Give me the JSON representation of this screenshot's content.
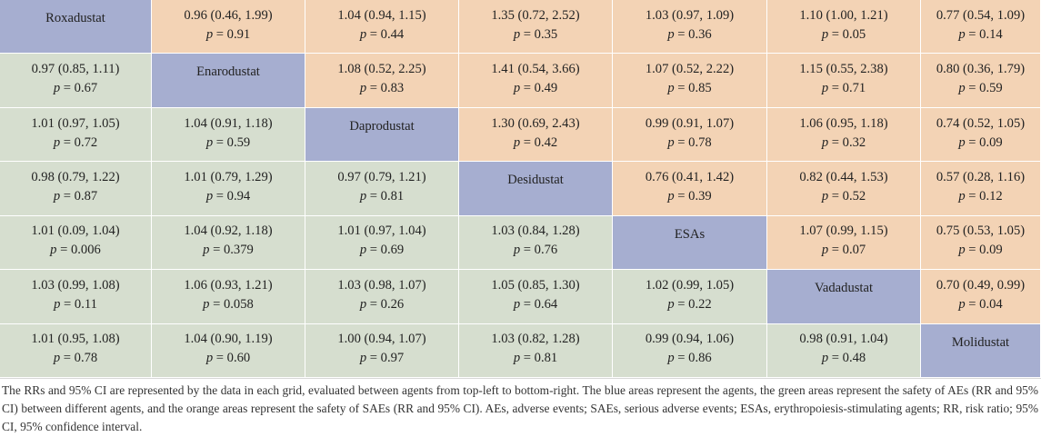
{
  "table": {
    "rows": [
      [
        {
          "kind": "agent",
          "label": "Roxadustat"
        },
        {
          "kind": "sae",
          "rr": "0.96 (0.46, 1.99)",
          "p": "0.91"
        },
        {
          "kind": "sae",
          "rr": "1.04 (0.94, 1.15)",
          "p": "0.44"
        },
        {
          "kind": "sae",
          "rr": "1.35 (0.72, 2.52)",
          "p": "0.35"
        },
        {
          "kind": "sae",
          "rr": "1.03 (0.97, 1.09)",
          "p": "0.36"
        },
        {
          "kind": "sae",
          "rr": "1.10 (1.00, 1.21)",
          "p": "0.05"
        },
        {
          "kind": "sae",
          "rr": "0.77 (0.54, 1.09)",
          "p": "0.14"
        }
      ],
      [
        {
          "kind": "ae",
          "rr": "0.97 (0.85, 1.11)",
          "p": "0.67"
        },
        {
          "kind": "agent",
          "label": "Enarodustat"
        },
        {
          "kind": "sae",
          "rr": "1.08 (0.52, 2.25)",
          "p": "0.83"
        },
        {
          "kind": "sae",
          "rr": "1.41 (0.54, 3.66)",
          "p": "0.49"
        },
        {
          "kind": "sae",
          "rr": "1.07 (0.52, 2.22)",
          "p": "0.85"
        },
        {
          "kind": "sae",
          "rr": "1.15 (0.55, 2.38)",
          "p": "0.71"
        },
        {
          "kind": "sae",
          "rr": "0.80 (0.36, 1.79)",
          "p": "0.59"
        }
      ],
      [
        {
          "kind": "ae",
          "rr": "1.01 (0.97, 1.05)",
          "p": "0.72"
        },
        {
          "kind": "ae",
          "rr": "1.04 (0.91, 1.18)",
          "p": "0.59"
        },
        {
          "kind": "agent",
          "label": "Daprodustat"
        },
        {
          "kind": "sae",
          "rr": "1.30 (0.69, 2.43)",
          "p": "0.42"
        },
        {
          "kind": "sae",
          "rr": "0.99 (0.91, 1.07)",
          "p": "0.78"
        },
        {
          "kind": "sae",
          "rr": "1.06 (0.95, 1.18)",
          "p": "0.32"
        },
        {
          "kind": "sae",
          "rr": "0.74 (0.52, 1.05)",
          "p": "0.09"
        }
      ],
      [
        {
          "kind": "ae",
          "rr": "0.98 (0.79, 1.22)",
          "p": "0.87"
        },
        {
          "kind": "ae",
          "rr": "1.01 (0.79, 1.29)",
          "p": "0.94"
        },
        {
          "kind": "ae",
          "rr": "0.97 (0.79, 1.21)",
          "p": "0.81"
        },
        {
          "kind": "agent",
          "label": "Desidustat"
        },
        {
          "kind": "sae",
          "rr": "0.76 (0.41, 1.42)",
          "p": "0.39"
        },
        {
          "kind": "sae",
          "rr": "0.82 (0.44, 1.53)",
          "p": "0.52"
        },
        {
          "kind": "sae",
          "rr": "0.57 (0.28, 1.16)",
          "p": "0.12"
        }
      ],
      [
        {
          "kind": "ae",
          "rr": "1.01 (0.09, 1.04)",
          "p": "0.006"
        },
        {
          "kind": "ae",
          "rr": "1.04 (0.92, 1.18)",
          "p": "0.379"
        },
        {
          "kind": "ae",
          "rr": "1.01 (0.97, 1.04)",
          "p": "0.69"
        },
        {
          "kind": "ae",
          "rr": "1.03 (0.84, 1.28)",
          "p": "0.76"
        },
        {
          "kind": "agent",
          "label": "ESAs"
        },
        {
          "kind": "sae",
          "rr": "1.07 (0.99, 1.15)",
          "p": "0.07"
        },
        {
          "kind": "sae",
          "rr": "0.75 (0.53, 1.05)",
          "p": "0.09"
        }
      ],
      [
        {
          "kind": "ae",
          "rr": "1.03 (0.99, 1.08)",
          "p": "0.11"
        },
        {
          "kind": "ae",
          "rr": "1.06 (0.93, 1.21)",
          "p": "0.058"
        },
        {
          "kind": "ae",
          "rr": "1.03 (0.98, 1.07)",
          "p": "0.26"
        },
        {
          "kind": "ae",
          "rr": "1.05 (0.85, 1.30)",
          "p": "0.64"
        },
        {
          "kind": "ae",
          "rr": "1.02 (0.99, 1.05)",
          "p": "0.22"
        },
        {
          "kind": "agent",
          "label": "Vadadustat"
        },
        {
          "kind": "sae",
          "rr": "0.70 (0.49, 0.99)",
          "p": "0.04"
        }
      ],
      [
        {
          "kind": "ae",
          "rr": "1.01 (0.95, 1.08)",
          "p": "0.78"
        },
        {
          "kind": "ae",
          "rr": "1.04 (0.90, 1.19)",
          "p": "0.60"
        },
        {
          "kind": "ae",
          "rr": "1.00 (0.94, 1.07)",
          "p": "0.97"
        },
        {
          "kind": "ae",
          "rr": "1.03 (0.82, 1.28)",
          "p": "0.81"
        },
        {
          "kind": "ae",
          "rr": "0.99 (0.94, 1.06)",
          "p": "0.86"
        },
        {
          "kind": "ae",
          "rr": "0.98 (0.91, 1.04)",
          "p": "0.48"
        },
        {
          "kind": "agent",
          "label": "Molidustat"
        }
      ]
    ],
    "p_prefix": "p",
    "p_equals": " = "
  },
  "caption": "The RRs and 95% CI are represented by the data in each grid, evaluated between agents from top-left to bottom-right. The blue areas represent the agents, the green areas represent the safety of AEs (RR and 95% CI) between different agents, and the orange areas represent the safety of SAEs (RR and 95% CI). AEs, adverse events; SAEs, serious adverse events; ESAs, erythropoiesis-stimulating agents; RR, risk ratio; 95% CI, 95% confidence interval.",
  "colors": {
    "agent": "#a6aed0",
    "ae": "#d6decf",
    "sae": "#f3d3b5"
  }
}
